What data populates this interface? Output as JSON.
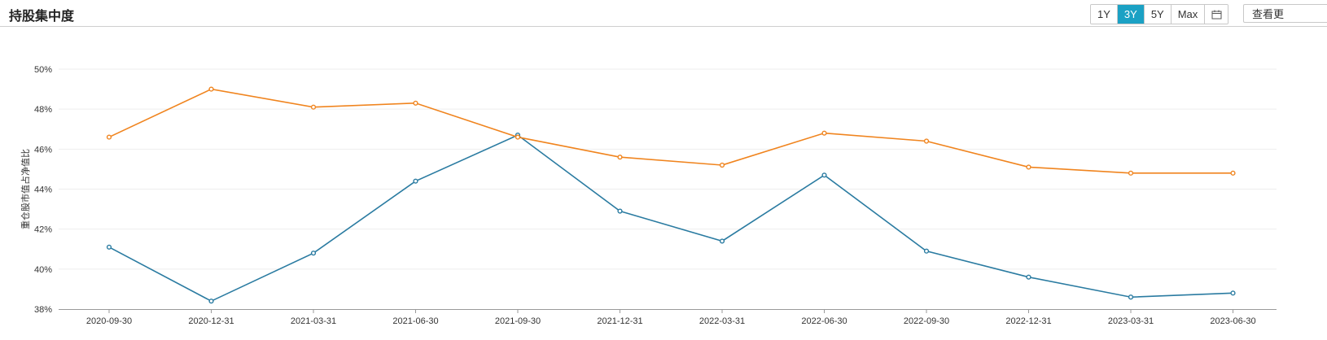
{
  "header": {
    "title": "持股集中度",
    "ranges": [
      "1Y",
      "3Y",
      "5Y",
      "Max"
    ],
    "active_range": "3Y",
    "calendar_icon": "calendar-icon",
    "view_button_label": "查看更"
  },
  "colors": {
    "series_1": "#2a7ba1",
    "series_2": "#f0841e",
    "active_button": "#1ba1c4",
    "grid": "#eeeeee"
  },
  "chart_data": {
    "type": "line",
    "ylabel": "重仓股市值占净值比",
    "ylim": [
      38,
      50
    ],
    "yticks": [
      38,
      40,
      42,
      44,
      46,
      48,
      50
    ],
    "ytick_labels": [
      "38%",
      "40%",
      "42%",
      "44%",
      "46%",
      "48%",
      "50%"
    ],
    "categories": [
      "2020-09-30",
      "2020-12-31",
      "2021-03-31",
      "2021-06-30",
      "2021-09-30",
      "2021-12-31",
      "2022-03-31",
      "2022-06-30",
      "2022-09-30",
      "2022-12-31",
      "2023-03-31",
      "2023-06-30"
    ],
    "series": [
      {
        "values": [
          41.1,
          38.4,
          40.8,
          44.4,
          46.7,
          42.9,
          41.4,
          44.7,
          40.9,
          39.6,
          38.6,
          38.8
        ]
      },
      {
        "values": [
          46.6,
          49.0,
          48.1,
          48.3,
          46.6,
          45.6,
          45.2,
          46.8,
          46.4,
          45.1,
          44.8,
          44.8
        ]
      }
    ],
    "grid": true,
    "legend": "none"
  }
}
